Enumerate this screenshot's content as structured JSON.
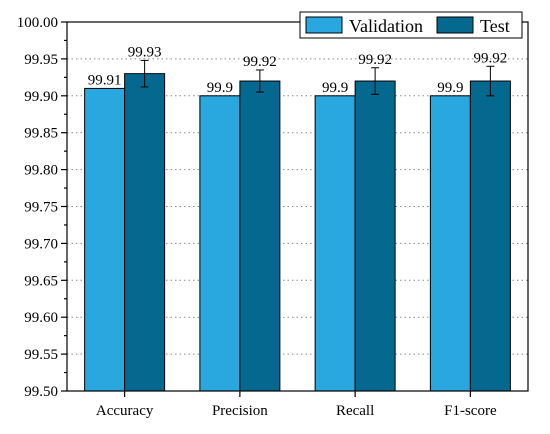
{
  "chart_data": {
    "type": "bar",
    "title": "",
    "xlabel": "",
    "ylabel": "",
    "categories": [
      "Accuracy",
      "Precision",
      "Recall",
      "F1-score"
    ],
    "ylim": [
      99.5,
      100.0
    ],
    "yticks": [
      "99.50",
      "99.55",
      "99.60",
      "99.65",
      "99.70",
      "99.75",
      "99.80",
      "99.85",
      "99.90",
      "99.95",
      "100.00"
    ],
    "grid": "horizontal dotted",
    "legend_position": "top-right",
    "series": [
      {
        "name": "Validation",
        "color": "#29a8df",
        "values": [
          99.91,
          99.9,
          99.9,
          99.9
        ],
        "labels": [
          "99.91",
          "99.9",
          "99.9",
          "99.9"
        ]
      },
      {
        "name": "Test",
        "color": "#05688f",
        "values": [
          99.93,
          99.92,
          99.92,
          99.92
        ],
        "labels": [
          "99.93",
          "99.92",
          "99.92",
          "99.92"
        ],
        "error": [
          0.018,
          0.015,
          0.018,
          0.02
        ]
      }
    ]
  }
}
